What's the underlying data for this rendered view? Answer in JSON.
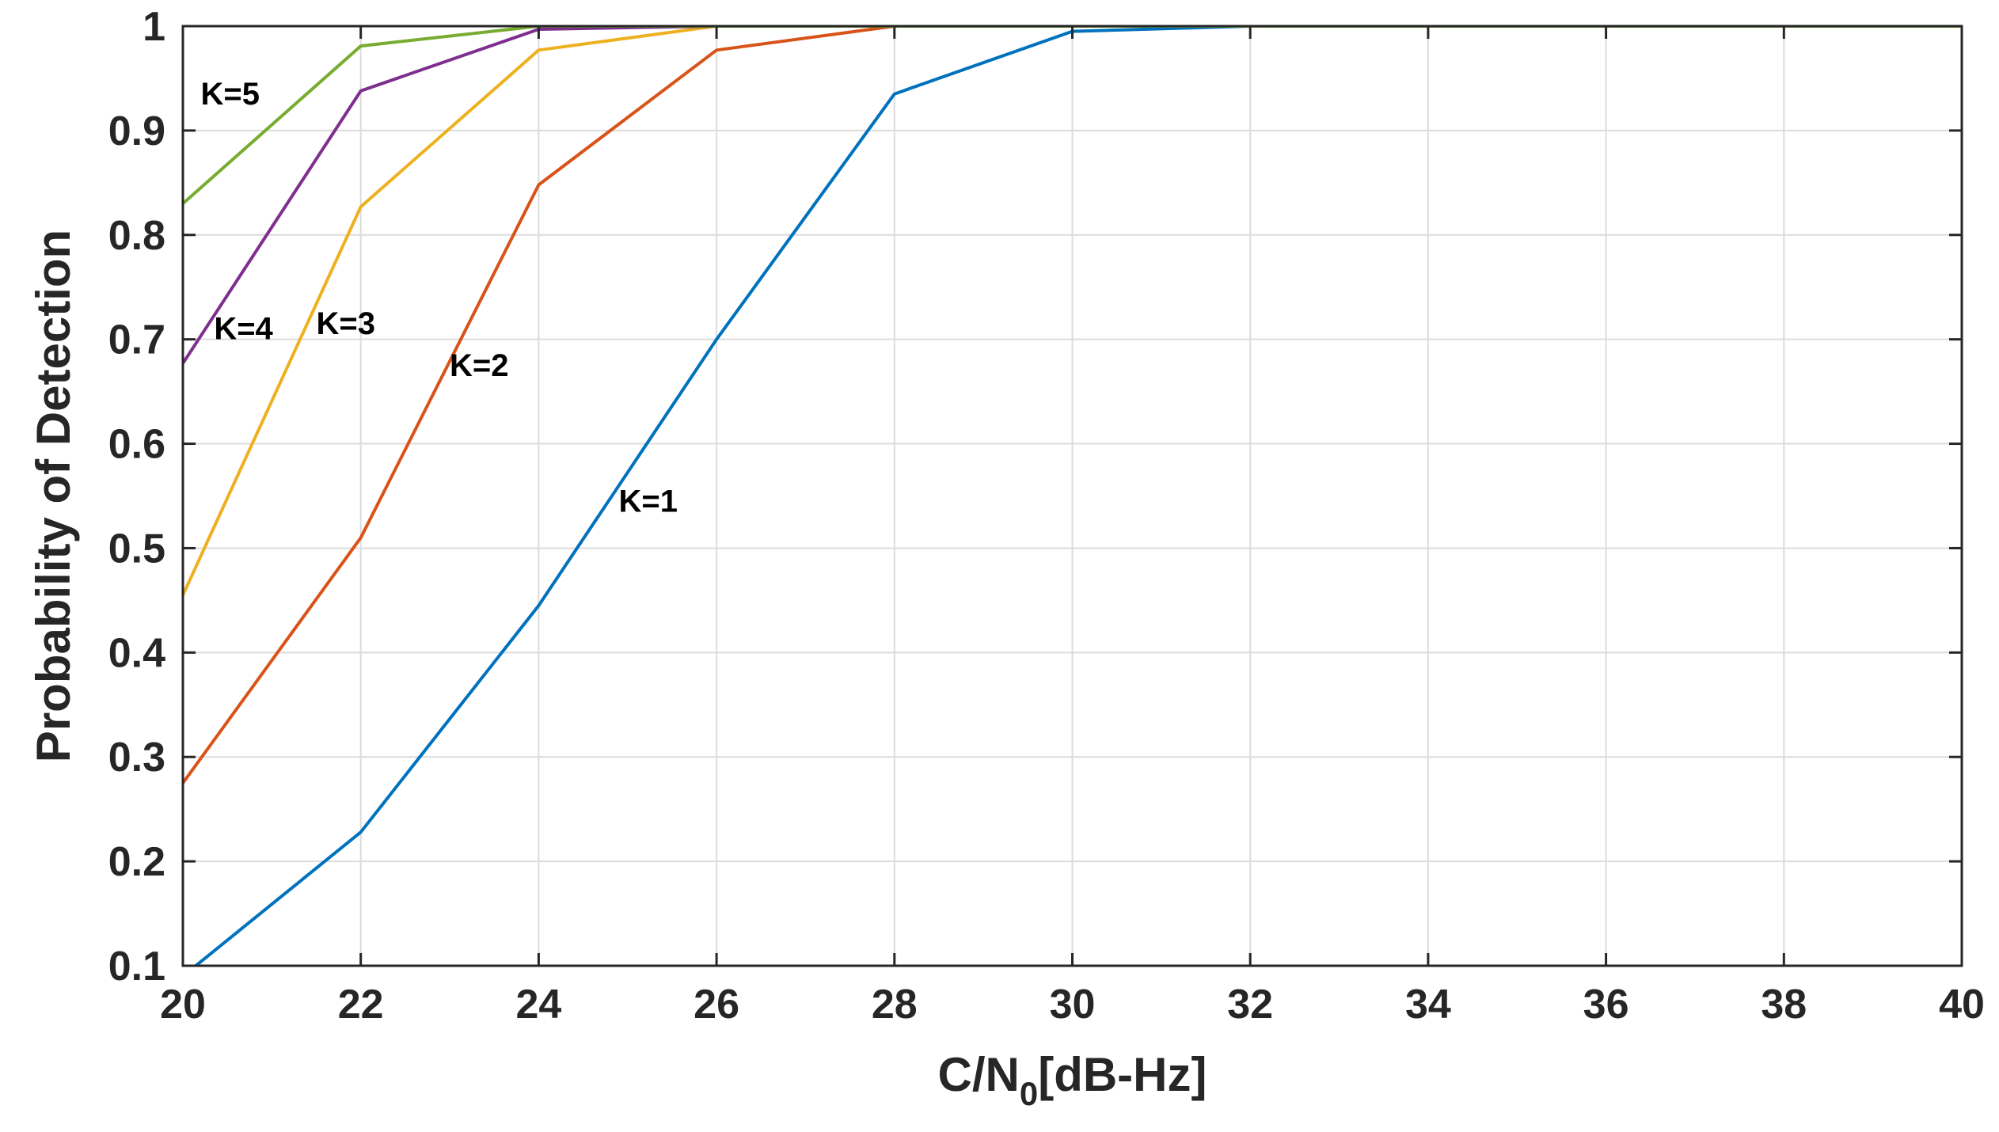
{
  "chart_data": {
    "type": "line",
    "xlabel": "C/N",
    "xlabel_sub": "0",
    "xlabel_tail": "[dB-Hz]",
    "ylabel": "Probability of Detection",
    "xlim": [
      20,
      40
    ],
    "ylim": [
      0.1,
      1
    ],
    "grid": true,
    "x_ticks": [
      20,
      22,
      24,
      26,
      28,
      30,
      32,
      34,
      36,
      38,
      40
    ],
    "x_tick_labels": [
      "20",
      "22",
      "24",
      "26",
      "28",
      "30",
      "32",
      "34",
      "36",
      "38",
      "40"
    ],
    "y_ticks": [
      0.1,
      0.2,
      0.3,
      0.4,
      0.5,
      0.6,
      0.7,
      0.8,
      0.9,
      1
    ],
    "y_tick_labels": [
      "0.1",
      "0.2",
      "0.3",
      "0.4",
      "0.5",
      "0.6",
      "0.7",
      "0.8",
      "0.9",
      "1"
    ],
    "x": [
      20,
      22,
      24,
      26,
      28,
      30,
      32,
      34,
      36,
      38,
      40
    ],
    "series": [
      {
        "name": "K=1",
        "color": "#0072BD",
        "values": [
          0.09,
          0.228,
          0.445,
          0.7,
          0.935,
          0.995,
          1,
          1,
          1,
          1,
          1
        ],
        "label_at": [
          24.9,
          0.535
        ]
      },
      {
        "name": "K=2",
        "color": "#D95319",
        "values": [
          0.275,
          0.51,
          0.848,
          0.977,
          1,
          1,
          1,
          1,
          1,
          1,
          1
        ],
        "label_at": [
          23.0,
          0.665
        ]
      },
      {
        "name": "K=3",
        "color": "#EDB120",
        "values": [
          0.455,
          0.827,
          0.977,
          1,
          1,
          1,
          1,
          1,
          1,
          1,
          1
        ],
        "label_at": [
          21.5,
          0.705
        ]
      },
      {
        "name": "K=4",
        "color": "#7E2F8E",
        "values": [
          0.677,
          0.938,
          0.997,
          1,
          1,
          1,
          1,
          1,
          1,
          1,
          1
        ],
        "label_at": [
          20.35,
          0.7
        ]
      },
      {
        "name": "K=5",
        "color": "#77AC30",
        "values": [
          0.83,
          0.981,
          1,
          1,
          1,
          1,
          1,
          1,
          1,
          1,
          1
        ],
        "label_at": [
          20.2,
          0.925
        ]
      }
    ]
  }
}
